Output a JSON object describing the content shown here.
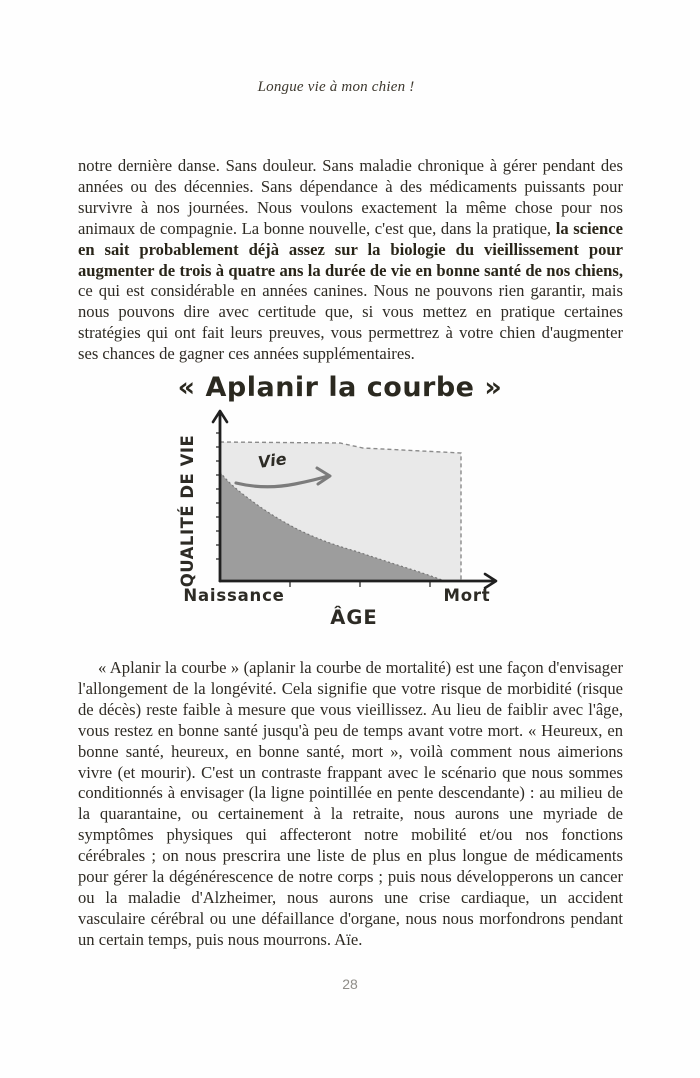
{
  "page": {
    "running_header": "Longue vie à mon chien !",
    "page_number": "28"
  },
  "paragraph1": {
    "segments": [
      {
        "bold": false,
        "text": "notre dernière danse. Sans douleur. Sans maladie chronique à gérer pendant des années ou des décennies. Sans dépendance à des médicaments puissants pour survivre à nos journées. Nous voulons exactement la même chose pour nos animaux de compagnie. La bonne nouvelle, c'est que, dans la pratique, "
      },
      {
        "bold": true,
        "text": "la science en sait probablement déjà assez sur la biologie du vieillissement pour augmenter de trois à quatre ans la durée de vie en bonne santé de nos chiens,"
      },
      {
        "bold": false,
        "text": " ce qui est considérable en années canines. Nous ne pouvons rien garantir, mais nous pouvons dire avec certitude que, si vous mettez en pratique certaines stratégies qui ont fait leurs preuves, vous permettrez à votre chien d'augmenter ses chances de gagner ces années supplémentaires."
      }
    ]
  },
  "figure": {
    "title": "« Aplanir la courbe »",
    "ylabel": "QUALITÉ DE VIE",
    "xlabel": "ÂGE",
    "x_start_label": "Naissance",
    "x_end_label": "Mort",
    "annotation": "Vie"
  },
  "chart_data": {
    "type": "area",
    "title": "« Aplanir la courbe »",
    "xlabel": "ÂGE",
    "ylabel": "QUALITÉ DE VIE",
    "x_tick_labels": [
      "Naissance",
      "Mort"
    ],
    "annotation": "Vie (flèche vers la droite)",
    "x_range_normalized": [
      0,
      1
    ],
    "y_range_normalized": [
      0,
      1
    ],
    "grid": false,
    "legend": false,
    "series": [
      {
        "name": "courbe aplanie : qualité de vie élevée jusqu'à la mort",
        "style": "zone gris clair, contour pointillé, chute verticale à la mort",
        "fill_color": "#e9e9e9",
        "outline_color": "#8b8b8b",
        "points": [
          [
            0,
            0.93
          ],
          [
            0.5,
            0.92
          ],
          [
            0.6,
            0.89
          ],
          [
            1.0,
            0.86
          ],
          [
            1.0,
            0
          ]
        ]
      },
      {
        "name": "déclin progressif : scénario conditionné (morbidité croissante)",
        "style": "zone gris foncé, décroissance concave",
        "fill_color": "#9d9d9d",
        "outline_color": "#777777",
        "points": [
          [
            0,
            0.73
          ],
          [
            0.12,
            0.55
          ],
          [
            0.33,
            0.35
          ],
          [
            0.55,
            0.21
          ],
          [
            0.78,
            0.09
          ],
          [
            0.92,
            0
          ]
        ]
      }
    ]
  },
  "paragraph2": {
    "text": "« Aplanir la courbe » (aplanir la courbe de mortalité) est une façon d'envisager l'allongement de la longévité. Cela signifie que votre risque de morbidité (risque de décès) reste faible à mesure que vous vieillissez. Au lieu de faiblir avec l'âge, vous restez en bonne santé jusqu'à peu de temps avant votre mort. « Heureux, en bonne santé, heureux, en bonne santé, mort », voilà comment nous aimerions vivre (et mourir). C'est un contraste frappant avec le scénario que nous sommes conditionnés à envisager (la ligne pointillée en pente descendante) : au milieu de la quarantaine, ou certainement à la retraite, nous aurons une myriade de symptômes physiques qui affecteront notre mobilité et/ou nos fonctions cérébrales ; on nous prescrira une liste de plus en plus longue de médicaments pour gérer la dégénérescence de notre corps ; puis nous développerons un cancer ou la maladie d'Alzheimer, nous aurons une crise cardiaque, un accident vasculaire cérébral ou une défaillance d'organe, nous nous morfondrons pendant un certain temps, puis nous mourrons. Aïe."
  }
}
